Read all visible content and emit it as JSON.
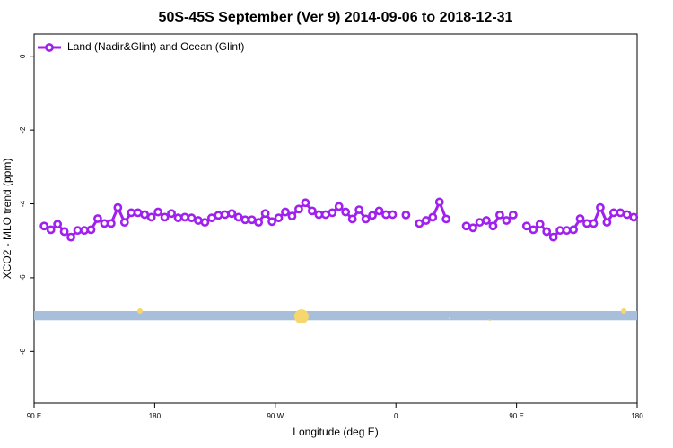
{
  "chart_data": {
    "type": "line",
    "title": "50S-45S September (Ver 9)   2014-09-06 to 2018-12-31",
    "xlabel": "Longitude (deg E)",
    "ylabel": "XCO2 - MLO trend (ppm)",
    "xlim": [
      90,
      540
    ],
    "ylim": [
      -9.4,
      0.6
    ],
    "xticks": [
      {
        "value": 90,
        "label": "90 E"
      },
      {
        "value": 180,
        "label": "180"
      },
      {
        "value": 270,
        "label": "90 W"
      },
      {
        "value": 360,
        "label": "0"
      },
      {
        "value": 450,
        "label": "90 E"
      },
      {
        "value": 540,
        "label": "180"
      }
    ],
    "yticks": [
      0,
      -2,
      -4,
      -6,
      -8
    ],
    "legend_position": "top-left",
    "x": [
      97.5,
      102.5,
      107.5,
      112.5,
      117.5,
      122.5,
      127.5,
      132.5,
      137.5,
      142.5,
      147.5,
      152.5,
      157.5,
      162.5,
      167.5,
      172.5,
      177.5,
      182.5,
      187.5,
      192.5,
      197.5,
      202.5,
      207.5,
      212.5,
      217.5,
      222.5,
      227.5,
      232.5,
      237.5,
      242.5,
      247.5,
      252.5,
      257.5,
      262.5,
      267.5,
      272.5,
      277.5,
      282.5,
      287.5,
      292.5,
      297.5,
      302.5,
      307.5,
      312.5,
      317.5,
      322.5,
      327.5,
      332.5,
      337.5,
      342.5,
      347.5,
      352.5,
      357.5,
      362.5,
      367.5,
      372.5,
      377.5,
      382.5,
      387.5,
      392.5,
      397.5,
      402.5,
      407.5,
      412.5,
      417.5,
      422.5,
      427.5,
      432.5,
      437.5,
      442.5,
      447.5,
      452.5,
      457.5,
      462.5,
      467.5,
      472.5,
      477.5,
      482.5,
      487.5,
      492.5,
      497.5,
      502.5,
      507.5,
      512.5,
      517.5,
      522.5,
      527.5,
      532.5,
      537.5
    ],
    "series": [
      {
        "name": "Land (Nadir&Glint) and Ocean (Glint)",
        "color": "#a020f0",
        "values": [
          -4.6,
          -4.7,
          -4.55,
          -4.75,
          -4.9,
          -4.72,
          -4.72,
          -4.7,
          -4.4,
          -4.53,
          -4.53,
          -4.1,
          -4.5,
          -4.24,
          -4.24,
          -4.29,
          -4.36,
          -4.22,
          -4.36,
          -4.26,
          -4.38,
          -4.36,
          -4.38,
          -4.45,
          -4.5,
          -4.38,
          -4.31,
          -4.29,
          -4.26,
          -4.36,
          -4.43,
          -4.43,
          -4.5,
          -4.26,
          -4.48,
          -4.38,
          -4.22,
          -4.33,
          -4.14,
          -3.97,
          -4.19,
          -4.29,
          -4.29,
          -4.24,
          -4.07,
          -4.22,
          -4.41,
          -4.16,
          -4.41,
          -4.31,
          -4.19,
          -4.29,
          -4.29,
          null,
          -4.3,
          null,
          -4.53,
          -4.45,
          -4.36,
          -3.95,
          -4.41,
          null,
          null,
          -4.6,
          -4.65,
          -4.5,
          -4.45,
          -4.6,
          -4.3,
          -4.45,
          -4.3,
          null,
          -4.6,
          -4.7,
          -4.55,
          -4.75,
          -4.9,
          -4.72,
          -4.72,
          -4.7,
          -4.4,
          -4.53,
          -4.53,
          -4.1,
          -4.5,
          -4.24,
          -4.24,
          -4.29,
          -4.36
        ]
      }
    ],
    "band": {
      "ymin": -7.15,
      "ymax": -6.9,
      "color": "#a8bfdc"
    },
    "markers": {
      "color": "#f5d76e",
      "x": [
        169,
        289.5,
        400,
        430,
        530
      ],
      "y": [
        -6.9,
        -7.05,
        -7.1,
        -7.15,
        -6.9
      ],
      "sizes": [
        3,
        8,
        1,
        1,
        3
      ]
    }
  }
}
